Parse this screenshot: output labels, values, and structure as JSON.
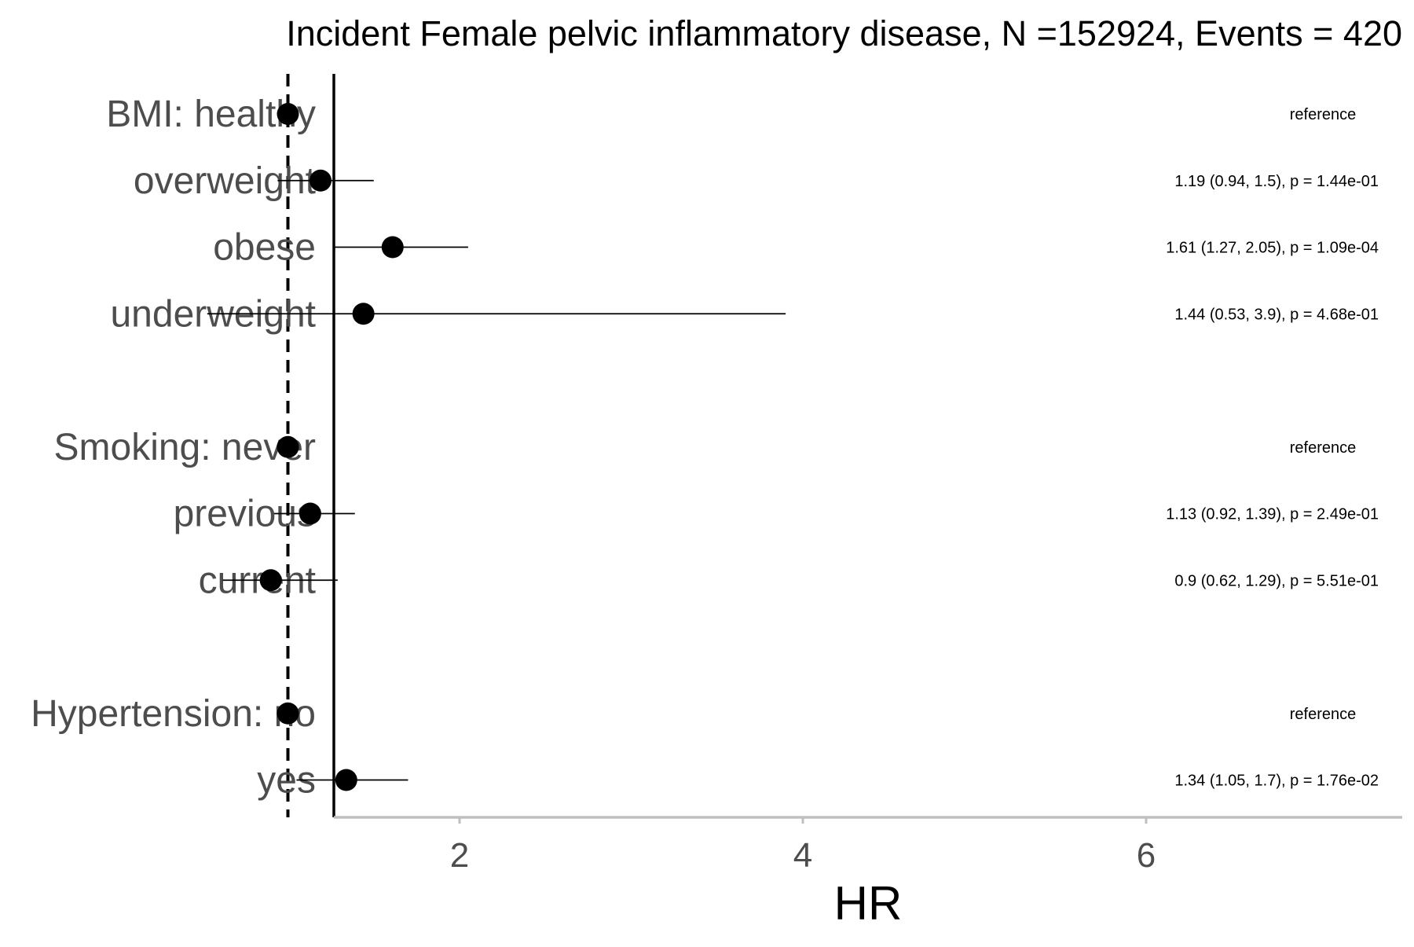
{
  "chart_data": {
    "type": "forest",
    "title": "Incident Female pelvic inflammatory disease, N =152924, Events = 420",
    "xlabel": "HR",
    "ylabel": "",
    "xlim": [
      0.0,
      6.5
    ],
    "x_ticks": [
      2,
      4,
      6
    ],
    "reference_line": 1,
    "grid": false,
    "rows": [
      {
        "label": "BMI: healthy",
        "hr": 1.0,
        "lower": null,
        "upper": null,
        "annotation": "reference"
      },
      {
        "label": "overweight",
        "hr": 1.19,
        "lower": 0.94,
        "upper": 1.5,
        "annotation": "1.19 (0.94, 1.5), p = 1.44e-01"
      },
      {
        "label": "obese",
        "hr": 1.61,
        "lower": 1.27,
        "upper": 2.05,
        "annotation": "1.61 (1.27, 2.05), p = 1.09e-04"
      },
      {
        "label": "underweight",
        "hr": 1.44,
        "lower": 0.53,
        "upper": 3.9,
        "annotation": "1.44 (0.53, 3.9), p = 4.68e-01"
      },
      {
        "gap": true
      },
      {
        "label": "Smoking: never",
        "hr": 1.0,
        "lower": null,
        "upper": null,
        "annotation": "reference"
      },
      {
        "label": "previous",
        "hr": 1.13,
        "lower": 0.92,
        "upper": 1.39,
        "annotation": "1.13 (0.92, 1.39), p = 2.49e-01"
      },
      {
        "label": "current",
        "hr": 0.9,
        "lower": 0.62,
        "upper": 1.29,
        "annotation": "0.9 (0.62, 1.29), p = 5.51e-01"
      },
      {
        "gap": true
      },
      {
        "label": "Hypertension: no",
        "hr": 1.0,
        "lower": null,
        "upper": null,
        "annotation": "reference"
      },
      {
        "label": "yes",
        "hr": 1.34,
        "lower": 1.05,
        "upper": 1.7,
        "annotation": "1.34 (1.05, 1.7), p = 1.76e-02"
      }
    ],
    "colors": {
      "point": "#000000",
      "ci_line": "#000000",
      "reference_line": "#000000",
      "y_axis_line": "#000000",
      "x_axis_line": "#bfbfbf",
      "category_text": "#4d4d4d",
      "tick_text": "#4d4d4d"
    }
  }
}
